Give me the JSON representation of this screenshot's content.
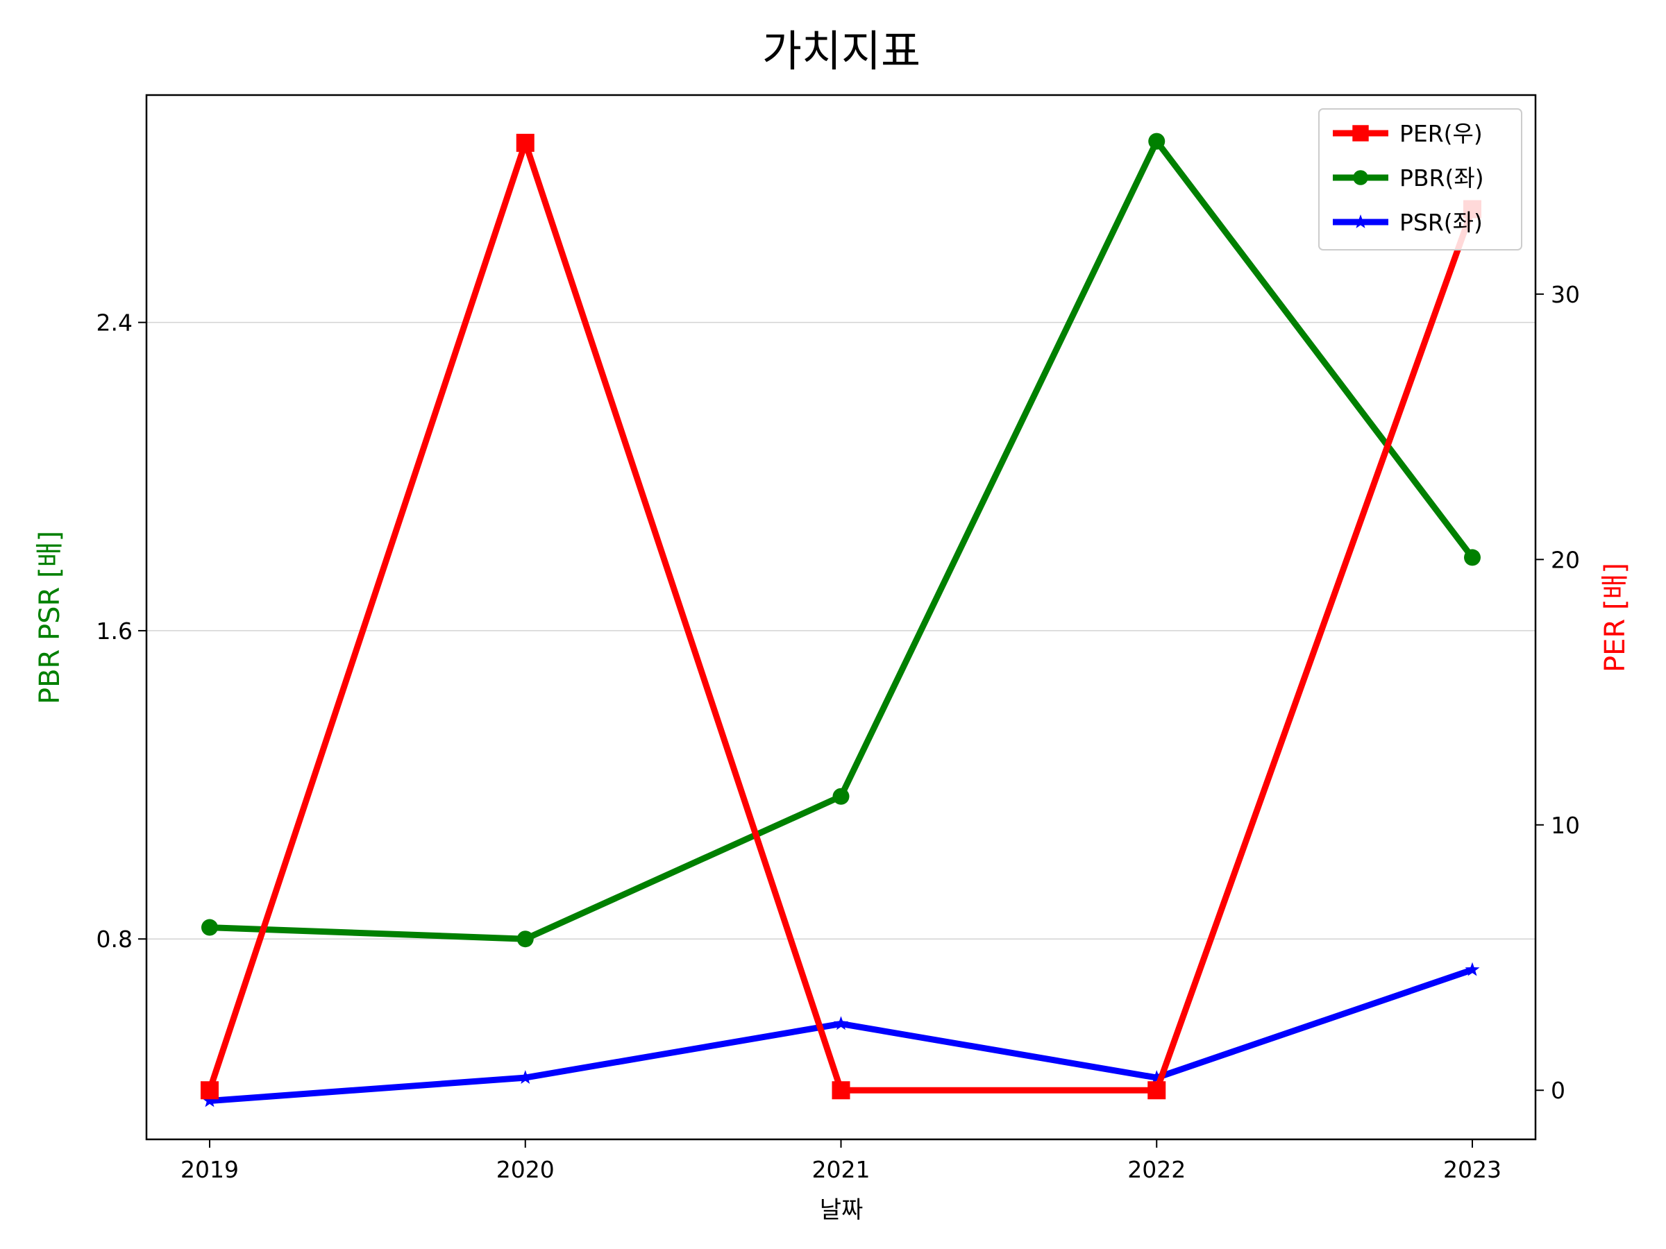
{
  "chart_data": {
    "type": "line",
    "title": "가치지표",
    "xlabel": "날짜",
    "ylabel_left": "PBR PSR [배]",
    "ylabel_right": "PER [배]",
    "categories": [
      "2019",
      "2020",
      "2021",
      "2022",
      "2023"
    ],
    "left_axis": {
      "ylim": [
        0.28,
        2.99
      ],
      "ticks": [
        0.8,
        1.6,
        2.4
      ],
      "tick_labels": [
        "0.8",
        "1.6",
        "2.4"
      ],
      "grid": true
    },
    "right_axis": {
      "ylim": [
        -1.85,
        37.5
      ],
      "ticks": [
        0,
        10,
        20,
        30
      ],
      "tick_labels": [
        "0",
        "10",
        "20",
        "30"
      ]
    },
    "series": [
      {
        "name": "PER(우)",
        "axis": "right",
        "color": "#ff0000",
        "marker": "square",
        "values": [
          0,
          35.7,
          0,
          0,
          33.2
        ]
      },
      {
        "name": "PBR(좌)",
        "axis": "left",
        "color": "#008000",
        "marker": "circle",
        "values": [
          0.83,
          0.8,
          1.17,
          2.87,
          1.79
        ]
      },
      {
        "name": "PSR(좌)",
        "axis": "left",
        "color": "#0000ff",
        "marker": "star",
        "values": [
          0.38,
          0.44,
          0.58,
          0.44,
          0.72
        ]
      }
    ],
    "legend": {
      "position": "top-right",
      "order": [
        0,
        1,
        2
      ]
    },
    "colors": {
      "left_label": "#008000",
      "right_label": "#ff0000",
      "axes": "#000000",
      "grid": "#d3d3d3"
    }
  }
}
